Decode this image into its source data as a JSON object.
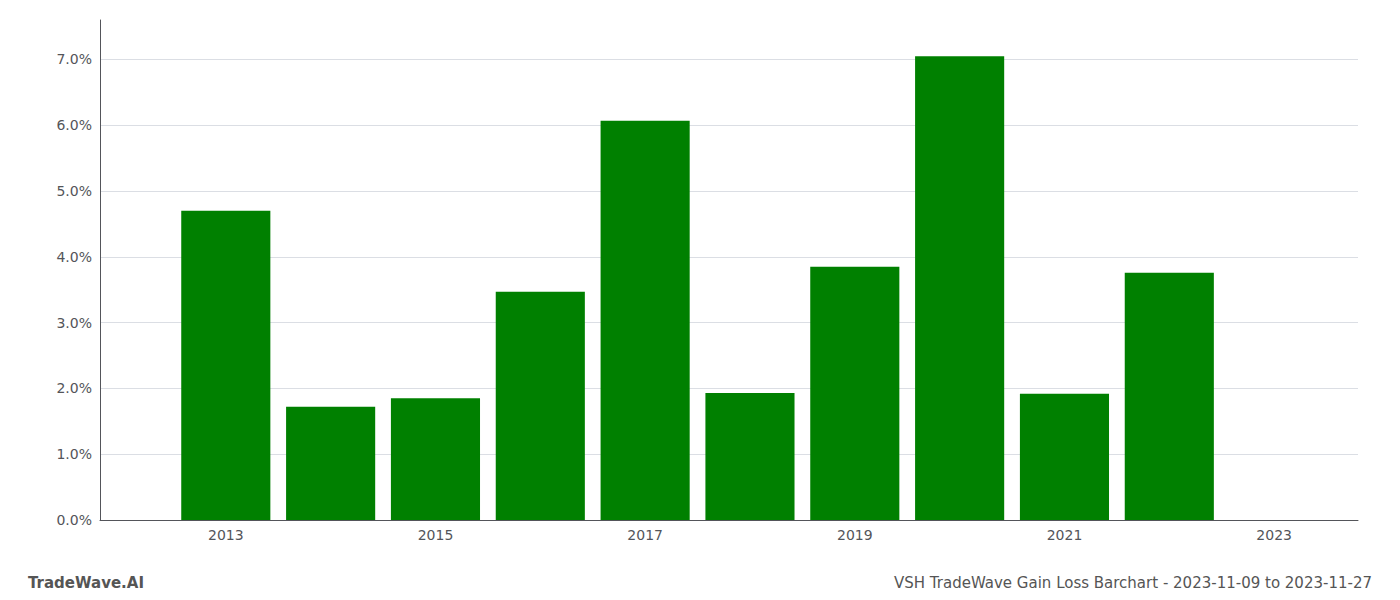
{
  "chart_data": {
    "type": "bar",
    "x": [
      2013,
      2014,
      2015,
      2016,
      2017,
      2018,
      2019,
      2020,
      2021,
      2022
    ],
    "values": [
      0.047,
      0.0172,
      0.0185,
      0.0347,
      0.0607,
      0.0193,
      0.0385,
      0.0705,
      0.0192,
      0.0376
    ],
    "color": "#008000",
    "xlim": [
      2011.8,
      2023.8
    ],
    "xticks": [
      2013,
      2015,
      2017,
      2019,
      2021,
      2023
    ],
    "ylim": [
      0.0,
      0.076
    ],
    "yticks": [
      {
        "value": 0.0,
        "label": "0.0%"
      },
      {
        "value": 0.01,
        "label": "1.0%"
      },
      {
        "value": 0.02,
        "label": "2.0%"
      },
      {
        "value": 0.03,
        "label": "3.0%"
      },
      {
        "value": 0.04,
        "label": "4.0%"
      },
      {
        "value": 0.05,
        "label": "5.0%"
      },
      {
        "value": 0.06,
        "label": "6.0%"
      },
      {
        "value": 0.07,
        "label": "7.0%"
      }
    ],
    "grid": true,
    "annotations": [
      "TradeWave.AI",
      "VSH TradeWave Gain Loss Barchart - 2023-11-09 to 2023-11-27"
    ]
  }
}
